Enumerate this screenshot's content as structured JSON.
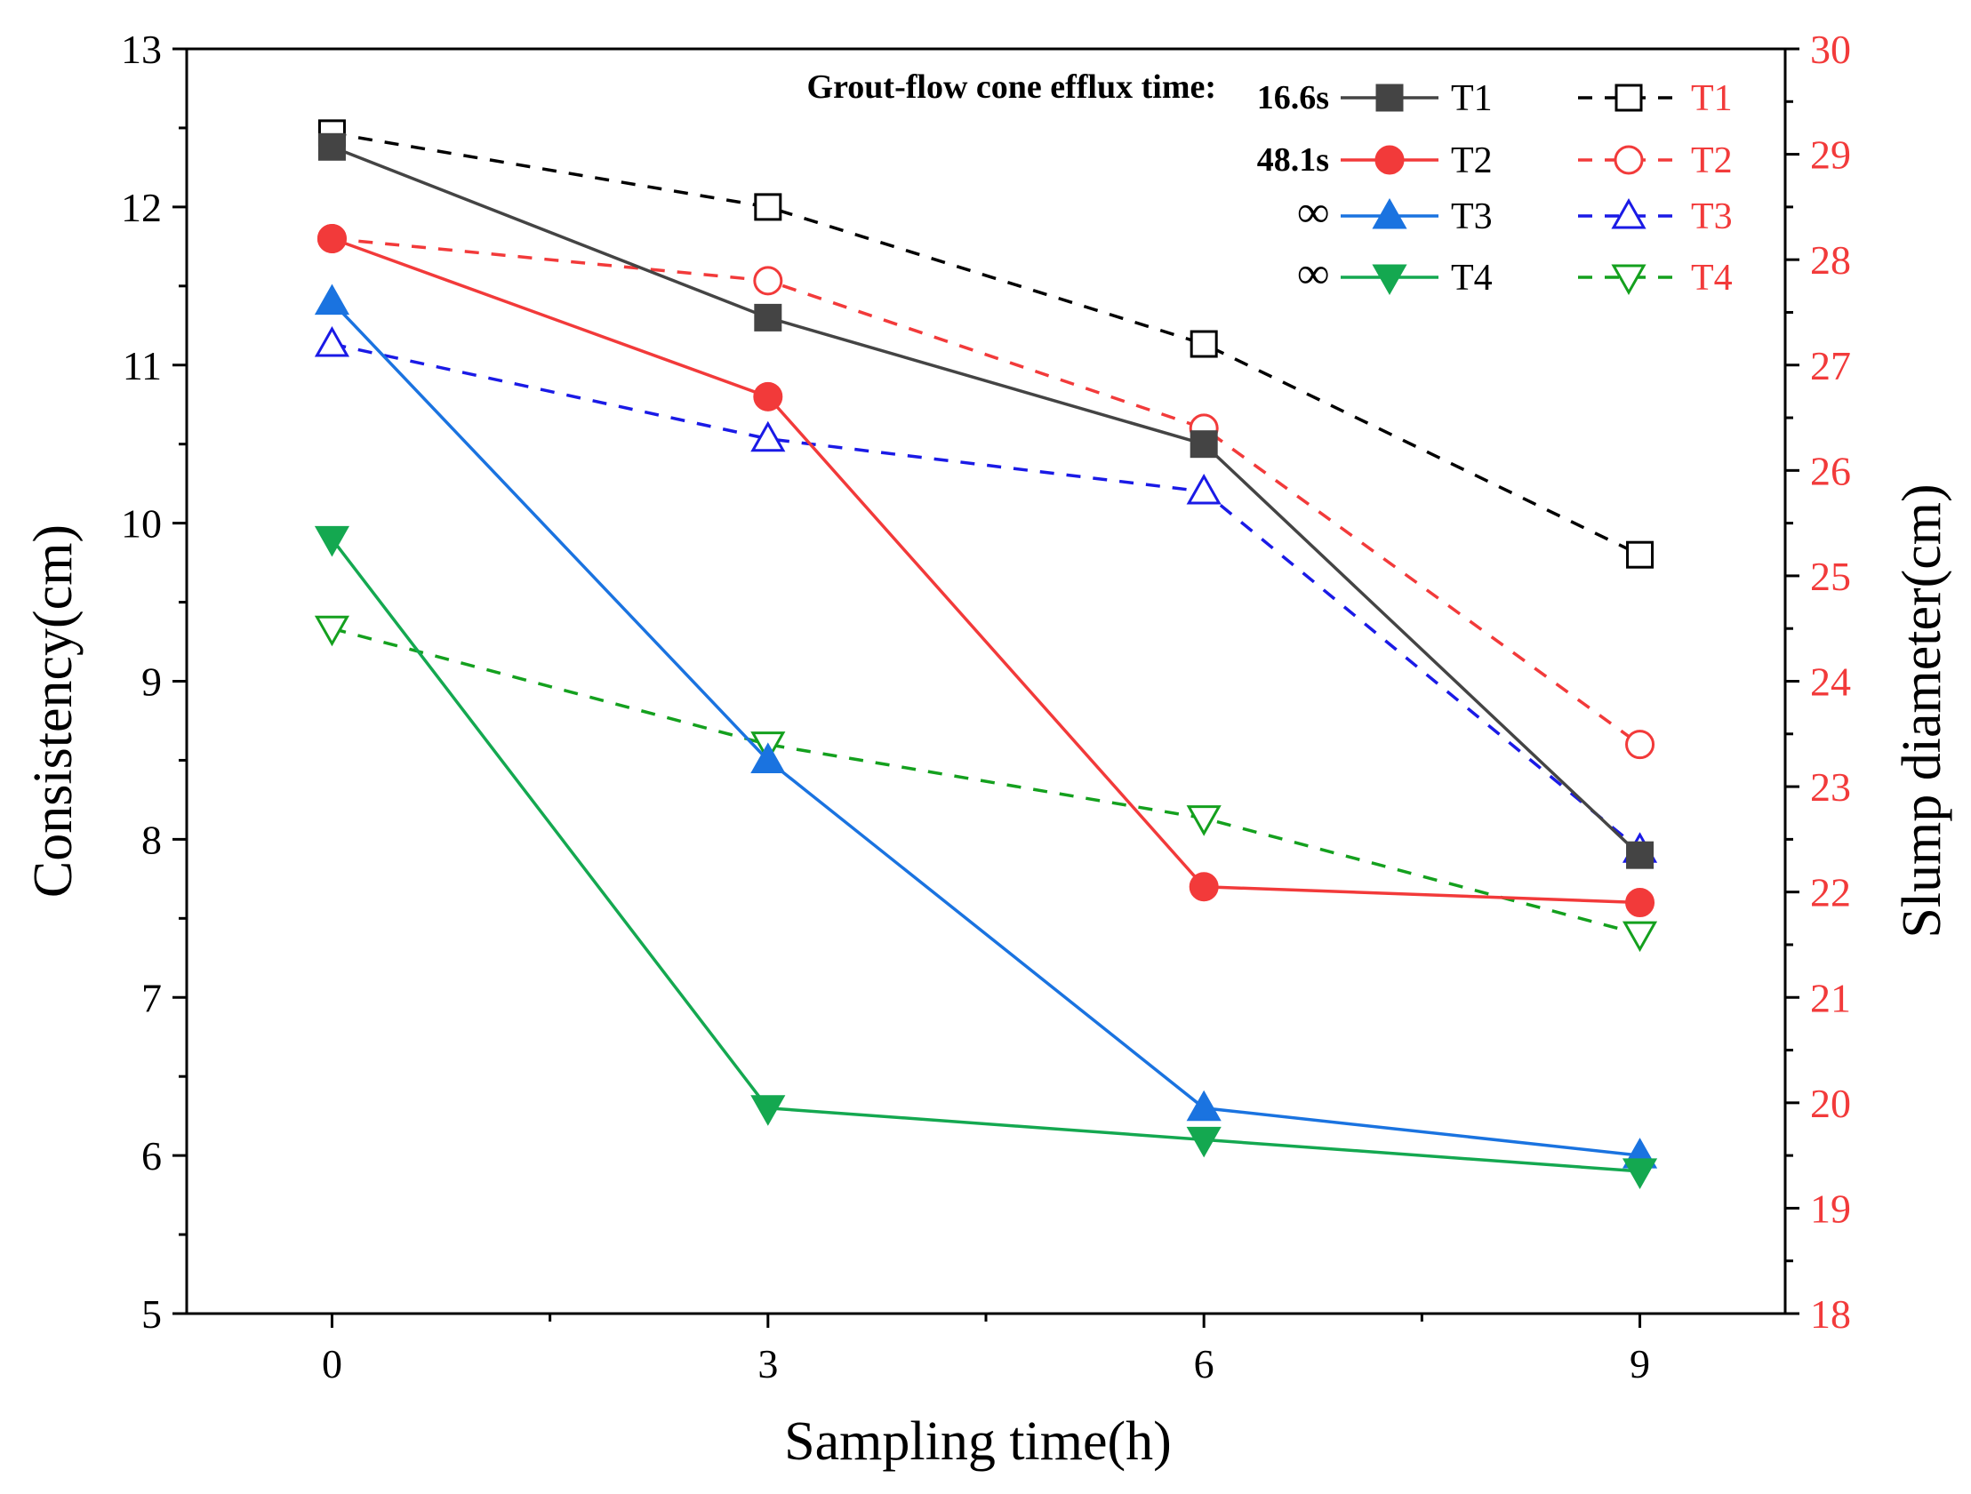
{
  "chart_data": {
    "type": "line",
    "title": "",
    "xlabel": "Sampling time(h)",
    "ylabel": "Consistency(cm)",
    "y2label": "Slump diameter(cm)",
    "x": [
      0,
      3,
      6,
      9
    ],
    "xticks": [
      "0",
      "3",
      "6",
      "9"
    ],
    "xlim": [
      -1,
      10
    ],
    "ylim": [
      5,
      13
    ],
    "y2lim": [
      18,
      30
    ],
    "yticks": [
      "5",
      "6",
      "7",
      "8",
      "9",
      "10",
      "11",
      "12",
      "13"
    ],
    "y2ticks": [
      "18",
      "19",
      "20",
      "21",
      "22",
      "23",
      "24",
      "25",
      "26",
      "27",
      "28",
      "29",
      "30"
    ],
    "legend_placement": "top-right",
    "legend_header": "Grout-flow cone efflux time:",
    "series_consistency": [
      {
        "name": "T1",
        "axis": "left",
        "color": "#444444",
        "marker": "square",
        "filled": true,
        "dashed": false,
        "efflux_time": "16.6s",
        "values": [
          12.38,
          11.3,
          10.5,
          7.9
        ]
      },
      {
        "name": "T2",
        "axis": "left",
        "color": "#f23a3a",
        "marker": "circle",
        "filled": true,
        "dashed": false,
        "efflux_time": "48.1s",
        "values": [
          11.8,
          10.8,
          7.7,
          7.6
        ]
      },
      {
        "name": "T3",
        "axis": "left",
        "color": "#1a73e0",
        "marker": "triangle-up",
        "filled": true,
        "dashed": false,
        "efflux_time": "∞",
        "values": [
          11.4,
          8.5,
          6.3,
          6.0
        ]
      },
      {
        "name": "T4",
        "axis": "left",
        "color": "#14a850",
        "marker": "triangle-down",
        "filled": true,
        "dashed": false,
        "efflux_time": "∞",
        "values": [
          9.9,
          6.3,
          6.1,
          5.9
        ]
      }
    ],
    "series_slump": [
      {
        "name": "T1",
        "axis": "right",
        "color": "#000000",
        "marker": "square",
        "filled": false,
        "dashed": true,
        "values": [
          29.2,
          28.5,
          27.2,
          25.2
        ]
      },
      {
        "name": "T2",
        "axis": "right",
        "color": "#f23a3a",
        "marker": "circle",
        "filled": false,
        "dashed": true,
        "values": [
          28.2,
          27.8,
          26.4,
          23.4
        ]
      },
      {
        "name": "T3",
        "axis": "right",
        "color": "#1a1ae6",
        "marker": "triangle-up",
        "filled": false,
        "dashed": true,
        "values": [
          27.2,
          26.3,
          25.8,
          22.4
        ]
      },
      {
        "name": "T4",
        "axis": "right",
        "color": "#14a01e",
        "marker": "triangle-down",
        "filled": false,
        "dashed": true,
        "values": [
          24.5,
          23.4,
          22.7,
          21.6
        ]
      }
    ],
    "colors": {
      "left_axis": "#000000",
      "right_axis_ticks": "#f23a3a",
      "right_axis_label": "#000000"
    }
  }
}
